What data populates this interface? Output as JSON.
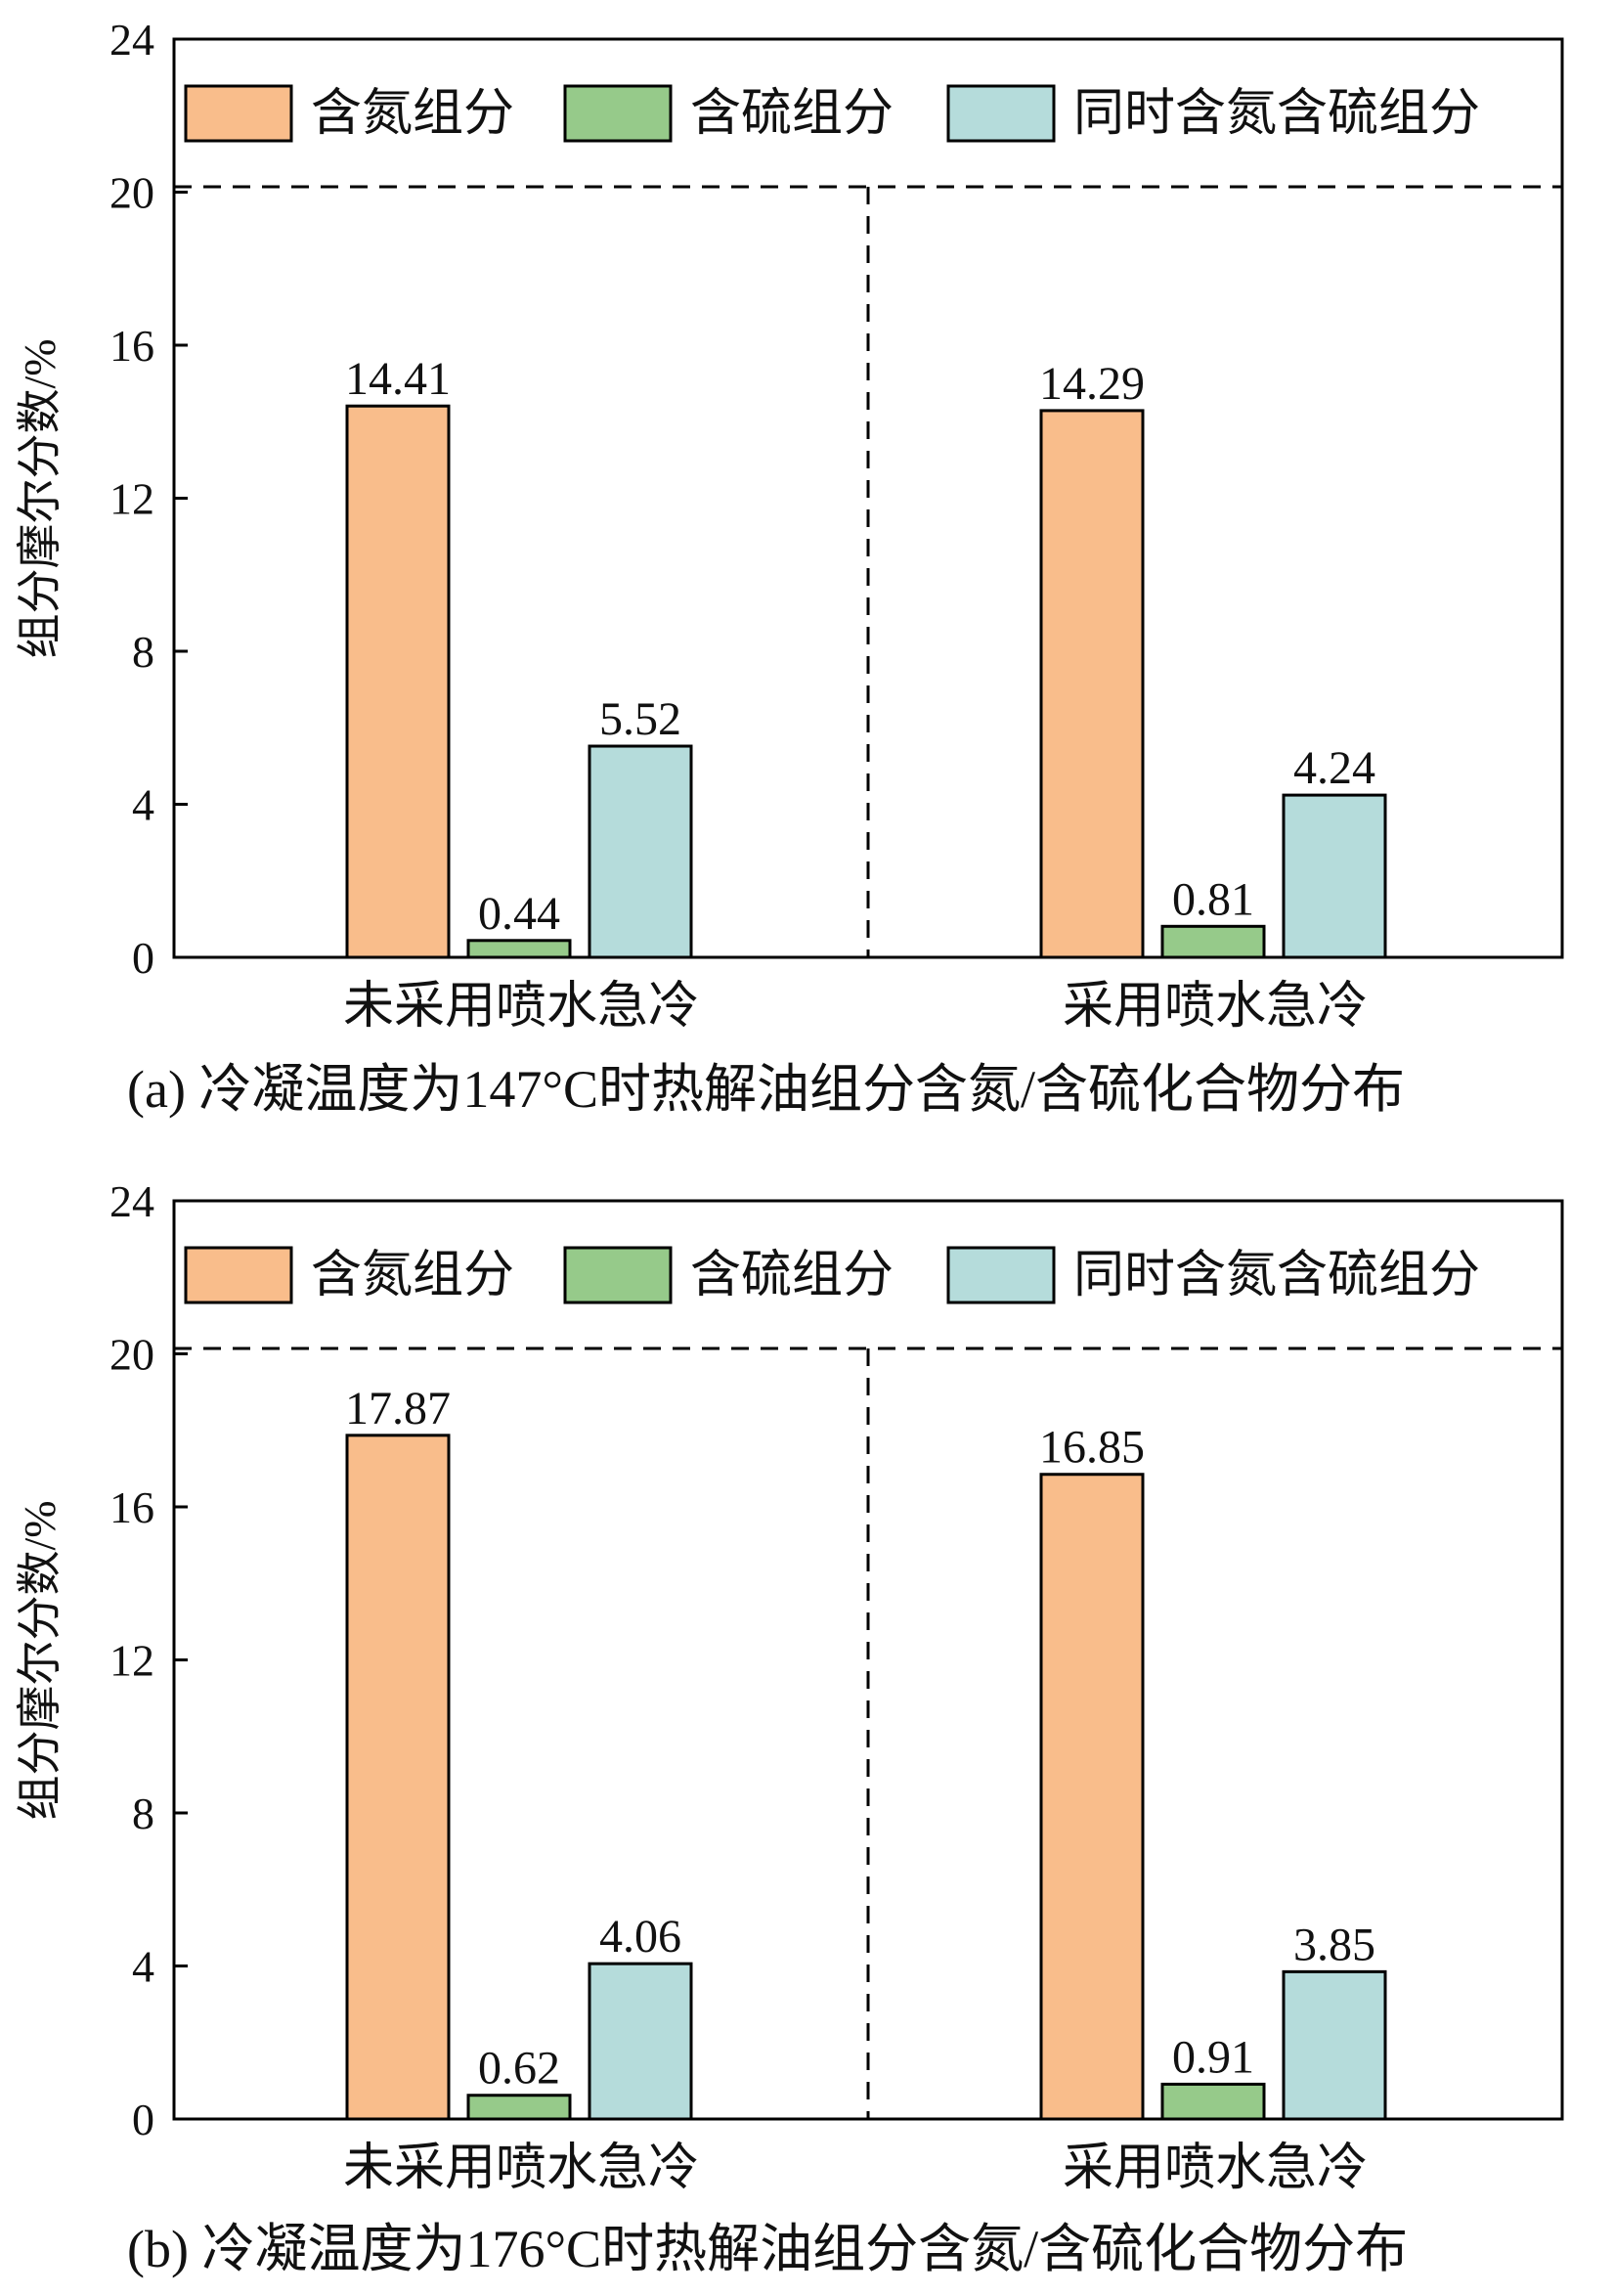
{
  "colors": {
    "n": "#f9bd8b",
    "s": "#96ca8a",
    "ns": "#b5dcdb"
  },
  "legend": [
    "含氮组分",
    "含硫组分",
    "同时含氮含硫组分"
  ],
  "chart_data": [
    {
      "type": "bar",
      "caption": "(a) 冷凝温度为147°C时热解油组分含氮/含硫化合物分布",
      "ylabel": "组分摩尔分数/%",
      "ylim": [
        0,
        24
      ],
      "yticks": [
        0,
        4,
        8,
        12,
        16,
        20,
        24
      ],
      "reference_line": 20,
      "categories": [
        "未采用喷水急冷",
        "采用喷水急冷"
      ],
      "series": [
        {
          "name": "含氮组分",
          "values": [
            14.41,
            14.29
          ],
          "labels": [
            "14.41",
            "14.29"
          ]
        },
        {
          "name": "含硫组分",
          "values": [
            0.44,
            0.81
          ],
          "labels": [
            "0.44",
            "0.81"
          ]
        },
        {
          "name": "同时含氮含硫组分",
          "values": [
            5.52,
            4.24
          ],
          "labels": [
            "5.52",
            "4.24"
          ]
        }
      ]
    },
    {
      "type": "bar",
      "caption": "(b) 冷凝温度为176°C时热解油组分含氮/含硫化合物分布",
      "ylabel": "组分摩尔分数/%",
      "ylim": [
        0,
        24
      ],
      "yticks": [
        0,
        4,
        8,
        12,
        16,
        20,
        24
      ],
      "reference_line": 20,
      "categories": [
        "未采用喷水急冷",
        "采用喷水急冷"
      ],
      "series": [
        {
          "name": "含氮组分",
          "values": [
            17.87,
            16.85
          ],
          "labels": [
            "17.87",
            "16.85"
          ]
        },
        {
          "name": "含硫组分",
          "values": [
            0.62,
            0.91
          ],
          "labels": [
            "0.62",
            "0.91"
          ]
        },
        {
          "name": "同时含氮含硫组分",
          "values": [
            4.06,
            3.85
          ],
          "labels": [
            "4.06",
            "3.85"
          ]
        }
      ]
    }
  ]
}
